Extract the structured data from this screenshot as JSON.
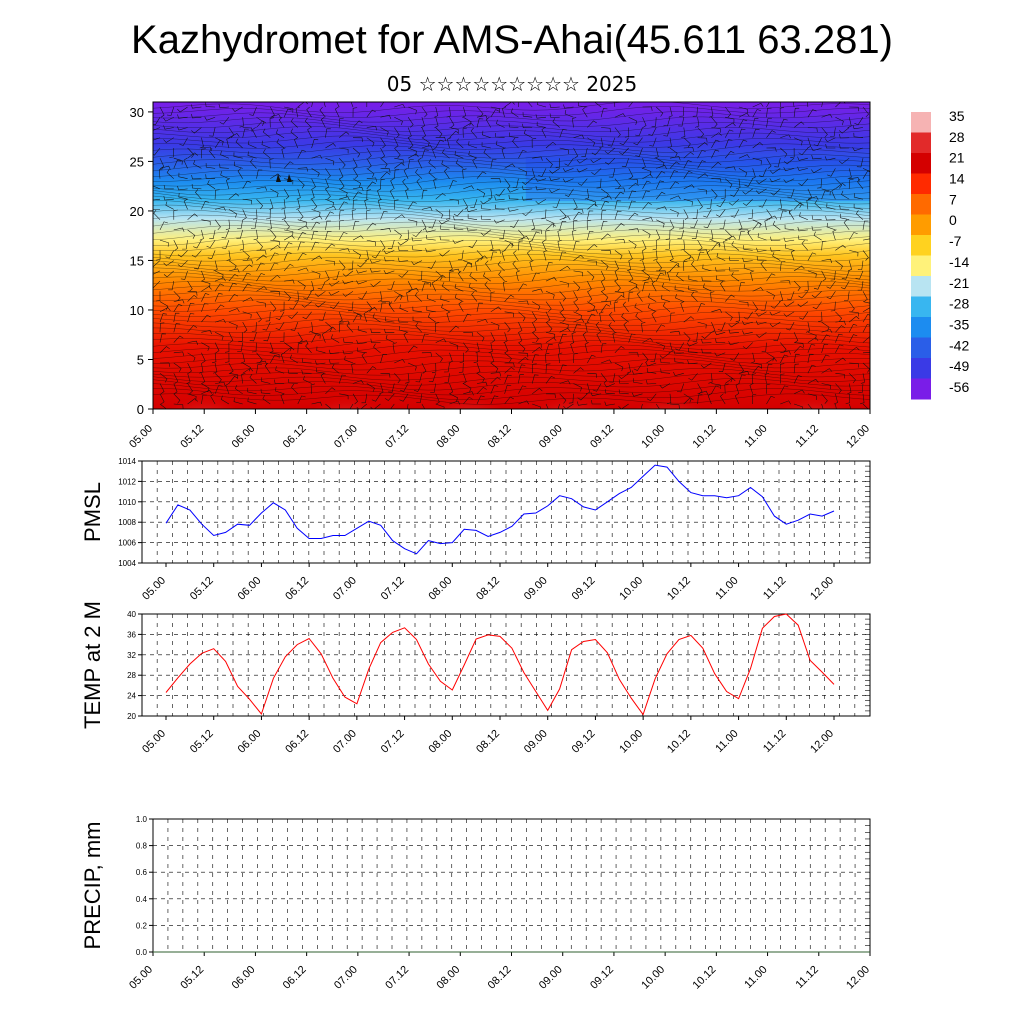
{
  "header": {
    "title": "Kazhydromet for AMS-Ahai(45.611 63.281)",
    "subtitle": "05 ☆☆☆☆☆☆☆☆☆ 2025"
  },
  "time_labels": [
    "05.00",
    "05.12",
    "06.00",
    "06.12",
    "07.00",
    "07.12",
    "08.00",
    "08.12",
    "09.00",
    "09.12",
    "10.00",
    "10.12",
    "11.00",
    "11.12",
    "12.00"
  ],
  "chart_data": [
    {
      "type": "heatmap",
      "title": "",
      "xlabel": "",
      "ylabel": "",
      "x": [
        "05.00",
        "05.12",
        "06.00",
        "06.12",
        "07.00",
        "07.12",
        "08.00",
        "08.12",
        "09.00",
        "09.12",
        "10.00",
        "10.12",
        "11.00",
        "11.12",
        "12.00"
      ],
      "yticks": [
        0,
        5,
        10,
        15,
        20,
        25,
        30
      ],
      "ylim": [
        0,
        31
      ],
      "colorbar": {
        "labels": [
          "35",
          "28",
          "21",
          "14",
          "7",
          "0",
          "-7",
          "-14",
          "-21",
          "-28",
          "-35",
          "-42",
          "-49",
          "-56"
        ],
        "colors": [
          "#f6b3b3",
          "#e22a2a",
          "#d40000",
          "#ff2a00",
          "#ff6a00",
          "#ff9c00",
          "#ffd21f",
          "#fff27a",
          "#b8e4f2",
          "#38b6f0",
          "#1c8cf0",
          "#2a5ee8",
          "#3a3ae6",
          "#7a1de8"
        ]
      },
      "temperature_by_level": [
        [
          0,
          28
        ],
        [
          3,
          25
        ],
        [
          6,
          21
        ],
        [
          9,
          15
        ],
        [
          12,
          7
        ],
        [
          15,
          0
        ],
        [
          17,
          -10
        ],
        [
          20,
          -21
        ],
        [
          22,
          -35
        ],
        [
          24,
          -45
        ],
        [
          26,
          -52
        ],
        [
          30,
          -56
        ]
      ],
      "wind_barbs": true
    },
    {
      "type": "line",
      "ylabel": "PMSL",
      "ylim": [
        1004,
        1014
      ],
      "yticks": [
        1004,
        1006,
        1008,
        1010,
        1012,
        1014
      ],
      "x": [
        "05.00",
        "05.03",
        "05.06",
        "05.09",
        "05.12",
        "05.15",
        "05.18",
        "05.21",
        "06.00",
        "06.03",
        "06.06",
        "06.09",
        "06.12",
        "06.15",
        "06.18",
        "06.21",
        "07.00",
        "07.03",
        "07.06",
        "07.09",
        "07.12",
        "07.15",
        "07.18",
        "07.21",
        "08.00",
        "08.03",
        "08.06",
        "08.09",
        "08.12",
        "08.15",
        "08.18",
        "08.21",
        "09.00",
        "09.03",
        "09.06",
        "09.09",
        "09.12",
        "09.15",
        "09.18",
        "09.21",
        "10.00",
        "10.03",
        "10.06",
        "10.09",
        "10.12",
        "10.15",
        "10.18",
        "10.21",
        "11.00",
        "11.03",
        "11.06",
        "11.09",
        "11.12",
        "11.15",
        "11.18",
        "11.21",
        "12.00"
      ],
      "series": [
        {
          "color": "#0000ff",
          "values": [
            1007.9,
            1009.7,
            1009.2,
            1007.8,
            1006.7,
            1007.0,
            1007.8,
            1007.7,
            1008.9,
            1009.9,
            1009.2,
            1007.4,
            1006.4,
            1006.4,
            1006.7,
            1006.7,
            1007.4,
            1008.1,
            1007.7,
            1006.2,
            1005.4,
            1004.9,
            1006.2,
            1005.9,
            1006.0,
            1007.3,
            1007.2,
            1006.6,
            1007.0,
            1007.6,
            1008.8,
            1008.9,
            1009.6,
            1010.6,
            1010.3,
            1009.5,
            1009.2,
            1010.0,
            1010.8,
            1011.4,
            1012.5,
            1013.6,
            1013.4,
            1012.0,
            1010.9,
            1010.6,
            1010.6,
            1010.4,
            1010.6,
            1011.4,
            1010.5,
            1008.6,
            1007.8,
            1008.2,
            1008.8,
            1008.6,
            1009.1
          ]
        }
      ]
    },
    {
      "type": "line",
      "ylabel": "TEMP at 2 M",
      "ylim": [
        20,
        40
      ],
      "yticks": [
        20,
        24,
        28,
        32,
        36,
        40
      ],
      "x": [
        "05.00",
        "05.03",
        "05.06",
        "05.09",
        "05.12",
        "05.15",
        "05.18",
        "05.21",
        "06.00",
        "06.03",
        "06.06",
        "06.09",
        "06.12",
        "06.15",
        "06.18",
        "06.21",
        "07.00",
        "07.03",
        "07.06",
        "07.09",
        "07.12",
        "07.15",
        "07.18",
        "07.21",
        "08.00",
        "08.03",
        "08.06",
        "08.09",
        "08.12",
        "08.15",
        "08.18",
        "08.21",
        "09.00",
        "09.03",
        "09.06",
        "09.09",
        "09.12",
        "09.15",
        "09.18",
        "09.21",
        "10.00",
        "10.03",
        "10.06",
        "10.09",
        "10.12",
        "10.15",
        "10.18",
        "10.21",
        "11.00",
        "11.03",
        "11.06",
        "11.09",
        "11.12",
        "11.15",
        "11.18",
        "11.21",
        "12.00"
      ],
      "series": [
        {
          "color": "#ff0000",
          "values": [
            24.6,
            27.5,
            30.2,
            32.3,
            33.2,
            30.7,
            25.8,
            23.3,
            20.4,
            27.4,
            31.6,
            34.0,
            35.2,
            32.2,
            27.4,
            23.7,
            22.4,
            29.2,
            34.4,
            36.4,
            37.3,
            35.0,
            30.2,
            26.8,
            25.1,
            30.0,
            35.1,
            35.9,
            35.6,
            33.3,
            28.5,
            24.8,
            21.1,
            25.3,
            33.0,
            34.6,
            35.0,
            32.4,
            27.2,
            23.5,
            20.3,
            27.3,
            32.2,
            35.0,
            35.8,
            33.3,
            28.3,
            24.8,
            23.4,
            29.3,
            37.2,
            39.5,
            40.0,
            37.8,
            30.9,
            28.6,
            26.2
          ]
        }
      ]
    },
    {
      "type": "line",
      "ylabel": "PRECIP, mm",
      "ylim": [
        0,
        1
      ],
      "yticks": [
        "0.0",
        "0.2",
        "0.4",
        "0.6",
        "0.8",
        "1.0"
      ],
      "series": [
        {
          "color": "#2f5f2f",
          "values": [
            0,
            0,
            0,
            0,
            0,
            0,
            0,
            0,
            0,
            0,
            0,
            0,
            0,
            0,
            0
          ]
        }
      ]
    }
  ]
}
